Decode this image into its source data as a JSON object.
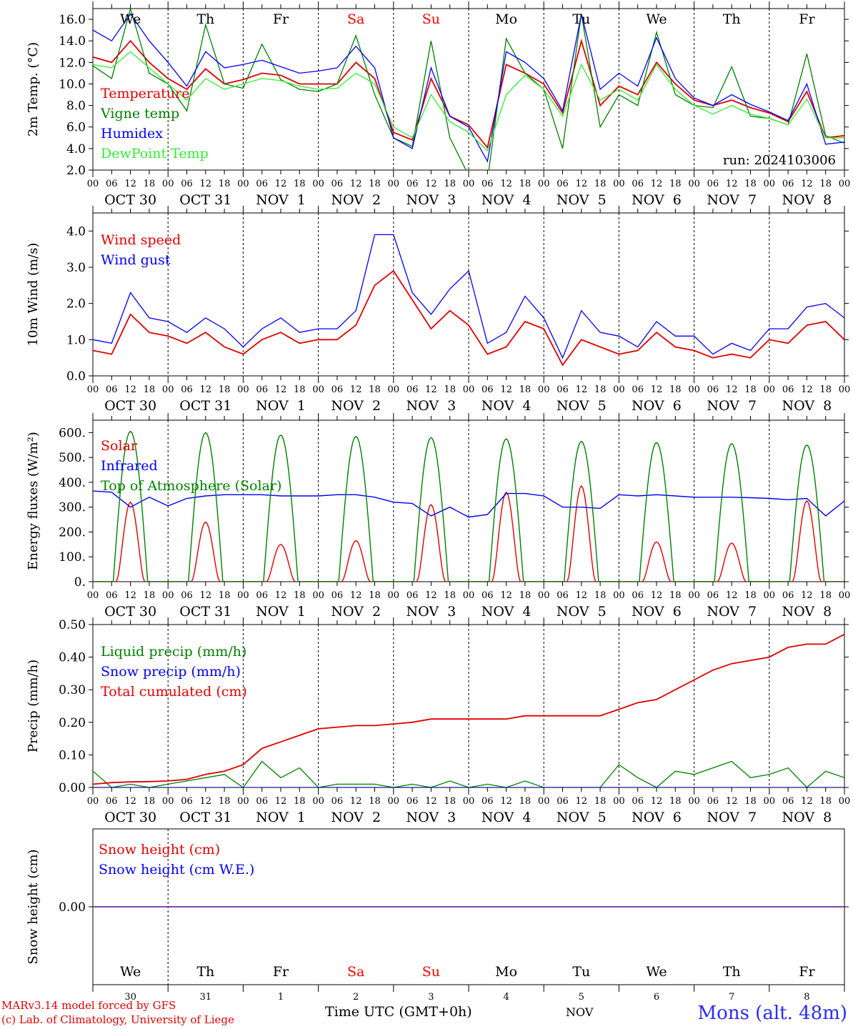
{
  "weekdays": [
    {
      "label": "We",
      "weekend": false
    },
    {
      "label": "Th",
      "weekend": false
    },
    {
      "label": "Fr",
      "weekend": false
    },
    {
      "label": "Sa",
      "weekend": true
    },
    {
      "label": "Su",
      "weekend": true
    },
    {
      "label": "Mo",
      "weekend": false
    },
    {
      "label": "Tu",
      "weekend": false
    },
    {
      "label": "We",
      "weekend": false
    },
    {
      "label": "Th",
      "weekend": false
    },
    {
      "label": "Fr",
      "weekend": false
    }
  ],
  "date_labels": [
    "OCT 30",
    "OCT 31",
    "NOV  1",
    "NOV  2",
    "NOV  3",
    "NOV  4",
    "NOV  5",
    "NOV  6",
    "NOV  7",
    "NOV  8"
  ],
  "hour_ticks": [
    "00",
    "06",
    "12",
    "18"
  ],
  "final_hour_tick": "00",
  "day_numbers": [
    "30",
    "31",
    "1",
    "2",
    "3",
    "4",
    "5",
    "6",
    "7",
    "8"
  ],
  "colors": {
    "red": "#e00000",
    "green": "#008000",
    "blue": "#0000ff",
    "light_green": "#33ee33",
    "weekend": "#ff0000",
    "purple": "#7030a0"
  },
  "footer": {
    "credit1": "MARv3.14 model forced by GFS",
    "credit2": "(c) Lab. of Climatology, University of Liege",
    "xlabel": "Time UTC (GMT+0h)",
    "month": "NOV",
    "station": "Mons (alt. 48m)"
  },
  "chart_data": [
    {
      "type": "line",
      "ylabel": "2m Temp. (°C)",
      "ylim": [
        2.0,
        17.0
      ],
      "yticks": [
        2.0,
        4.0,
        6.0,
        8.0,
        10.0,
        12.0,
        14.0,
        16.0
      ],
      "annotation": "run: 2024103006",
      "x_hours": [
        0,
        6,
        12,
        18,
        24,
        30,
        36,
        42,
        48,
        54,
        60,
        66,
        72,
        78,
        84,
        90,
        96,
        102,
        108,
        114,
        120,
        126,
        132,
        138,
        144,
        150,
        156,
        162,
        168,
        174,
        180,
        186,
        192,
        198,
        204,
        210,
        216,
        222,
        228,
        234,
        240
      ],
      "series": [
        {
          "name": "Temperature",
          "color": "red",
          "values": [
            12.5,
            12.0,
            14.0,
            12.0,
            10.5,
            9.5,
            11.4,
            10.0,
            10.4,
            11.0,
            10.8,
            10.0,
            10.0,
            10.0,
            12.0,
            10.5,
            5.5,
            4.8,
            10.5,
            7.0,
            6.2,
            4.1,
            11.8,
            11.0,
            10.0,
            7.3,
            14.0,
            8.0,
            9.8,
            9.0,
            12.0,
            10.0,
            8.5,
            8.0,
            8.5,
            7.8,
            7.3,
            6.5,
            9.3,
            5.0,
            5.2
          ]
        },
        {
          "name": "Vigne temp",
          "color": "green",
          "values": [
            11.7,
            10.5,
            17.0,
            11.0,
            10.0,
            7.5,
            15.5,
            10.0,
            9.6,
            13.7,
            10.4,
            9.5,
            9.3,
            10.0,
            14.5,
            9.0,
            5.0,
            4.2,
            14.0,
            5.0,
            1.5,
            1.0,
            14.2,
            11.0,
            9.5,
            4.0,
            16.5,
            6.0,
            9.0,
            8.0,
            14.8,
            9.0,
            8.0,
            7.8,
            11.6,
            7.0,
            6.8,
            6.2,
            12.8,
            5.2,
            4.5
          ]
        },
        {
          "name": "Humidex",
          "color": "blue",
          "values": [
            15.0,
            14.0,
            16.5,
            14.0,
            12.0,
            9.8,
            13.0,
            11.5,
            11.8,
            12.2,
            11.6,
            11.0,
            11.2,
            11.5,
            13.5,
            11.5,
            5.0,
            4.0,
            11.5,
            7.0,
            6.0,
            2.8,
            13.0,
            12.0,
            10.5,
            7.5,
            16.5,
            9.5,
            11.0,
            9.8,
            14.3,
            10.5,
            8.7,
            8.0,
            9.0,
            8.1,
            7.4,
            6.6,
            10.0,
            4.4,
            4.6
          ]
        },
        {
          "name": "DewPoint Temp",
          "color": "light_green",
          "values": [
            11.8,
            11.5,
            13.0,
            11.5,
            10.0,
            8.5,
            10.5,
            9.5,
            10.0,
            10.5,
            10.3,
            9.8,
            9.5,
            9.6,
            11.0,
            10.0,
            6.0,
            5.0,
            9.0,
            6.5,
            5.5,
            3.8,
            9.0,
            10.8,
            9.5,
            7.0,
            11.8,
            8.5,
            9.5,
            8.5,
            11.8,
            9.5,
            8.0,
            7.2,
            8.0,
            7.2,
            6.8,
            6.2,
            8.6,
            5.0,
            5.0
          ]
        }
      ]
    },
    {
      "type": "line",
      "ylabel": "10m Wind (m/s)",
      "ylim": [
        0.0,
        4.5
      ],
      "yticks": [
        0.0,
        1.0,
        2.0,
        3.0,
        4.0
      ],
      "x_hours": [
        0,
        6,
        12,
        18,
        24,
        30,
        36,
        42,
        48,
        54,
        60,
        66,
        72,
        78,
        84,
        90,
        96,
        102,
        108,
        114,
        120,
        126,
        132,
        138,
        144,
        150,
        156,
        162,
        168,
        174,
        180,
        186,
        192,
        198,
        204,
        210,
        216,
        222,
        228,
        234,
        240
      ],
      "series": [
        {
          "name": "Wind speed",
          "color": "red",
          "values": [
            0.7,
            0.6,
            1.7,
            1.2,
            1.1,
            0.9,
            1.2,
            0.8,
            0.6,
            1.0,
            1.2,
            0.9,
            1.0,
            1.0,
            1.4,
            2.5,
            2.9,
            2.1,
            1.3,
            1.8,
            1.4,
            0.6,
            0.8,
            1.5,
            1.3,
            0.3,
            1.0,
            0.8,
            0.6,
            0.7,
            1.2,
            0.8,
            0.7,
            0.5,
            0.6,
            0.5,
            1.0,
            0.9,
            1.4,
            1.5,
            1.0
          ]
        },
        {
          "name": "Wind gust",
          "color": "blue",
          "values": [
            1.0,
            0.9,
            2.3,
            1.6,
            1.5,
            1.2,
            1.6,
            1.3,
            0.8,
            1.3,
            1.6,
            1.2,
            1.3,
            1.3,
            1.8,
            3.9,
            3.9,
            2.3,
            1.7,
            2.4,
            2.9,
            0.9,
            1.2,
            2.2,
            1.6,
            0.5,
            1.8,
            1.2,
            1.1,
            0.8,
            1.5,
            1.1,
            1.1,
            0.6,
            0.9,
            0.7,
            1.3,
            1.3,
            1.9,
            2.0,
            1.6
          ]
        }
      ]
    },
    {
      "type": "line",
      "ylabel": "Energy fluxes (W/m²)",
      "ylim": [
        0,
        650
      ],
      "yticks": [
        0,
        100,
        200,
        300,
        400,
        500,
        600
      ],
      "tick_labels": [
        "0.",
        "100.",
        "200.",
        "300.",
        "400.",
        "500.",
        "600."
      ],
      "series": [
        {
          "name": "Solar",
          "color": "red",
          "peaks_by_day": [
            320,
            240,
            150,
            165,
            310,
            360,
            385,
            160,
            155,
            325
          ]
        },
        {
          "name": "Infrared",
          "color": "blue",
          "x_hours": [
            0,
            6,
            12,
            18,
            24,
            30,
            36,
            42,
            48,
            54,
            60,
            66,
            72,
            78,
            84,
            90,
            96,
            102,
            108,
            114,
            120,
            126,
            132,
            138,
            144,
            150,
            156,
            162,
            168,
            174,
            180,
            186,
            192,
            198,
            204,
            210,
            216,
            222,
            228,
            234,
            240
          ],
          "values": [
            365,
            360,
            300,
            340,
            305,
            335,
            345,
            350,
            350,
            350,
            345,
            345,
            345,
            350,
            350,
            340,
            320,
            315,
            265,
            300,
            260,
            270,
            355,
            355,
            345,
            300,
            300,
            295,
            350,
            345,
            350,
            345,
            340,
            340,
            340,
            338,
            335,
            330,
            335,
            265,
            325
          ]
        },
        {
          "name": "Top of Atmosphere (Solar)",
          "color": "green",
          "peaks_by_day": [
            605,
            600,
            590,
            585,
            580,
            575,
            565,
            560,
            555,
            550
          ]
        }
      ]
    },
    {
      "type": "line",
      "ylabel": "Precip (mm/h)",
      "ylim": [
        0.0,
        0.5
      ],
      "yticks": [
        0.0,
        0.1,
        0.2,
        0.3,
        0.4,
        0.5
      ],
      "x_hours": [
        0,
        6,
        12,
        18,
        24,
        30,
        36,
        42,
        48,
        54,
        60,
        66,
        72,
        78,
        84,
        90,
        96,
        102,
        108,
        114,
        120,
        126,
        132,
        138,
        144,
        150,
        156,
        162,
        168,
        174,
        180,
        186,
        192,
        198,
        204,
        210,
        216,
        222,
        228,
        234,
        240
      ],
      "series": [
        {
          "name": "Liquid precip (mm/h)",
          "color": "green",
          "values": [
            0.05,
            0.0,
            0.01,
            0.0,
            0.01,
            0.02,
            0.03,
            0.04,
            0.0,
            0.08,
            0.03,
            0.06,
            0.0,
            0.01,
            0.01,
            0.01,
            0.0,
            0.01,
            0.0,
            0.02,
            0.0,
            0.01,
            0.0,
            0.02,
            0.0,
            0.0,
            0.0,
            0.0,
            0.07,
            0.03,
            0.0,
            0.05,
            0.04,
            0.06,
            0.08,
            0.03,
            0.04,
            0.06,
            0.0,
            0.05,
            0.03
          ]
        },
        {
          "name": "Snow precip (mm/h)",
          "color": "blue",
          "values": [
            0,
            0,
            0,
            0,
            0,
            0,
            0,
            0,
            0,
            0,
            0,
            0,
            0,
            0,
            0,
            0,
            0,
            0,
            0,
            0,
            0,
            0,
            0,
            0,
            0,
            0,
            0,
            0,
            0,
            0,
            0,
            0,
            0,
            0,
            0,
            0,
            0,
            0,
            0,
            0,
            0
          ]
        },
        {
          "name": "Total cumulated (cm)",
          "color": "red",
          "values": [
            0.01,
            0.015,
            0.017,
            0.018,
            0.02,
            0.025,
            0.04,
            0.05,
            0.07,
            0.12,
            0.14,
            0.16,
            0.18,
            0.185,
            0.19,
            0.19,
            0.195,
            0.2,
            0.21,
            0.21,
            0.21,
            0.21,
            0.21,
            0.22,
            0.22,
            0.22,
            0.22,
            0.22,
            0.24,
            0.26,
            0.27,
            0.3,
            0.33,
            0.36,
            0.38,
            0.39,
            0.4,
            0.43,
            0.44,
            0.44,
            0.47
          ]
        }
      ]
    },
    {
      "type": "line",
      "ylabel": "Snow height (cm)",
      "ylim": [
        -1.0,
        1.0
      ],
      "yticks": [
        0.0
      ],
      "tick_labels": [
        "0.00"
      ],
      "series": [
        {
          "name": "Snow height (cm)",
          "color": "red",
          "values": [
            0,
            0
          ]
        },
        {
          "name": "Snow height (cm W.E.)",
          "color": "blue",
          "values": [
            0,
            0
          ]
        }
      ]
    }
  ]
}
